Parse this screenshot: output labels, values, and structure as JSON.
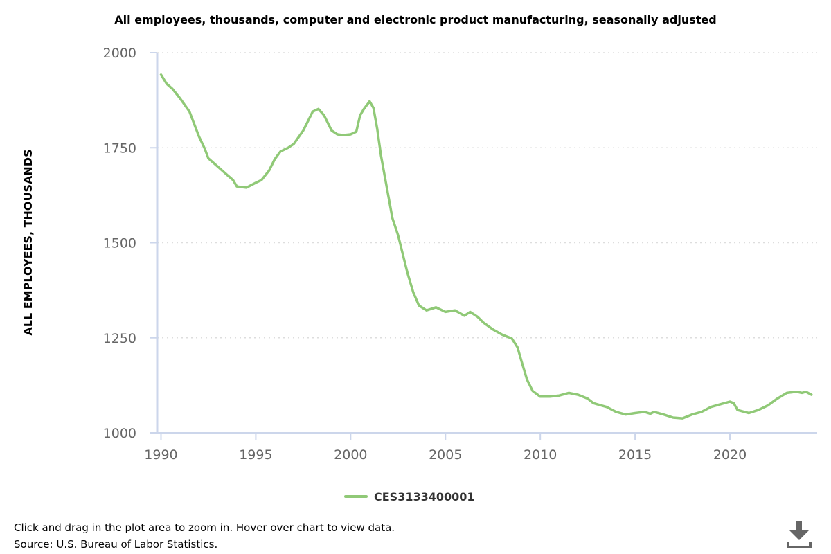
{
  "footer": {
    "instructions": "Click and drag in the plot area to zoom in. Hover over chart to view data.",
    "source": "Source: U.S. Bureau of Labor Statistics."
  },
  "download": {
    "icon": "download-icon"
  },
  "colors": {
    "series": "#90c977",
    "axis": "#ccd6eb",
    "grid": "#dddddd",
    "tick_text": "#666666"
  },
  "chart_data": {
    "type": "line",
    "title": "All employees, thousands, computer and electronic product manufacturing, seasonally adjusted",
    "xlabel": "",
    "ylabel": "ALL EMPLOYEES, THOUSANDS",
    "xlim": [
      1989.8,
      2024.6
    ],
    "ylim": [
      1000,
      2000
    ],
    "x_ticks": [
      1990,
      1995,
      2000,
      2005,
      2010,
      2015,
      2020
    ],
    "y_ticks": [
      1000,
      1250,
      1500,
      1750,
      2000
    ],
    "grid": "horizontal dotted",
    "legend_position": "bottom-center",
    "series": [
      {
        "name": "CES3133400001",
        "color": "#90c977",
        "points": [
          [
            1990.0,
            1942
          ],
          [
            1990.3,
            1918
          ],
          [
            1990.6,
            1905
          ],
          [
            1991.0,
            1880
          ],
          [
            1991.5,
            1845
          ],
          [
            1992.0,
            1780
          ],
          [
            1992.3,
            1748
          ],
          [
            1992.5,
            1722
          ],
          [
            1993.0,
            1700
          ],
          [
            1993.5,
            1678
          ],
          [
            1993.8,
            1665
          ],
          [
            1994.0,
            1648
          ],
          [
            1994.5,
            1645
          ],
          [
            1995.0,
            1658
          ],
          [
            1995.3,
            1665
          ],
          [
            1995.7,
            1690
          ],
          [
            1996.0,
            1720
          ],
          [
            1996.3,
            1740
          ],
          [
            1996.7,
            1750
          ],
          [
            1997.0,
            1760
          ],
          [
            1997.5,
            1795
          ],
          [
            1997.8,
            1825
          ],
          [
            1998.0,
            1845
          ],
          [
            1998.3,
            1852
          ],
          [
            1998.6,
            1835
          ],
          [
            1999.0,
            1795
          ],
          [
            1999.3,
            1785
          ],
          [
            1999.6,
            1783
          ],
          [
            2000.0,
            1785
          ],
          [
            2000.3,
            1792
          ],
          [
            2000.5,
            1835
          ],
          [
            2000.7,
            1852
          ],
          [
            2000.9,
            1865
          ],
          [
            2001.0,
            1872
          ],
          [
            2001.2,
            1855
          ],
          [
            2001.4,
            1800
          ],
          [
            2001.6,
            1730
          ],
          [
            2002.0,
            1620
          ],
          [
            2002.2,
            1565
          ],
          [
            2002.5,
            1520
          ],
          [
            2002.8,
            1460
          ],
          [
            2003.0,
            1420
          ],
          [
            2003.3,
            1370
          ],
          [
            2003.6,
            1335
          ],
          [
            2004.0,
            1322
          ],
          [
            2004.5,
            1330
          ],
          [
            2005.0,
            1318
          ],
          [
            2005.5,
            1322
          ],
          [
            2006.0,
            1308
          ],
          [
            2006.3,
            1318
          ],
          [
            2006.7,
            1305
          ],
          [
            2007.0,
            1290
          ],
          [
            2007.5,
            1272
          ],
          [
            2008.0,
            1258
          ],
          [
            2008.5,
            1248
          ],
          [
            2008.8,
            1225
          ],
          [
            2009.0,
            1190
          ],
          [
            2009.3,
            1140
          ],
          [
            2009.6,
            1110
          ],
          [
            2010.0,
            1095
          ],
          [
            2010.5,
            1095
          ],
          [
            2011.0,
            1098
          ],
          [
            2011.5,
            1105
          ],
          [
            2012.0,
            1100
          ],
          [
            2012.5,
            1090
          ],
          [
            2012.8,
            1078
          ],
          [
            2013.0,
            1075
          ],
          [
            2013.5,
            1068
          ],
          [
            2014.0,
            1055
          ],
          [
            2014.5,
            1048
          ],
          [
            2015.0,
            1052
          ],
          [
            2015.5,
            1055
          ],
          [
            2015.8,
            1050
          ],
          [
            2016.0,
            1055
          ],
          [
            2016.5,
            1048
          ],
          [
            2017.0,
            1040
          ],
          [
            2017.5,
            1038
          ],
          [
            2018.0,
            1048
          ],
          [
            2018.5,
            1055
          ],
          [
            2019.0,
            1068
          ],
          [
            2019.5,
            1075
          ],
          [
            2020.0,
            1082
          ],
          [
            2020.2,
            1078
          ],
          [
            2020.4,
            1060
          ],
          [
            2020.7,
            1056
          ],
          [
            2021.0,
            1052
          ],
          [
            2021.5,
            1060
          ],
          [
            2022.0,
            1072
          ],
          [
            2022.5,
            1090
          ],
          [
            2023.0,
            1105
          ],
          [
            2023.5,
            1108
          ],
          [
            2023.8,
            1105
          ],
          [
            2024.0,
            1108
          ],
          [
            2024.3,
            1100
          ]
        ]
      }
    ]
  }
}
